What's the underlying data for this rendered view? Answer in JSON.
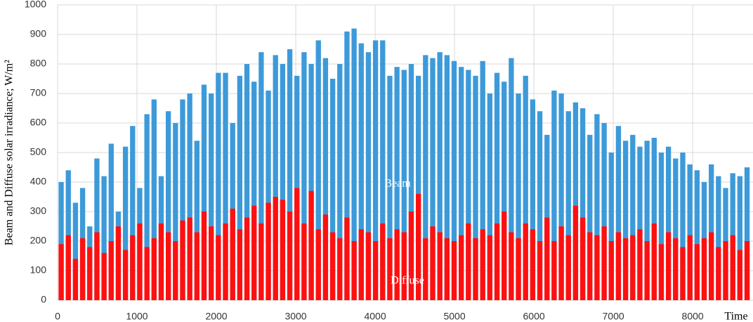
{
  "chart_data": {
    "type": "bar",
    "y_label": "Beam and Diffuse solar irradiance; W/m²",
    "x_label": "Time",
    "x": [
      45,
      135,
      225,
      315,
      405,
      495,
      585,
      675,
      765,
      855,
      945,
      1035,
      1125,
      1215,
      1305,
      1395,
      1485,
      1575,
      1665,
      1755,
      1845,
      1935,
      2025,
      2115,
      2205,
      2295,
      2385,
      2475,
      2565,
      2655,
      2745,
      2835,
      2925,
      3015,
      3105,
      3195,
      3285,
      3375,
      3465,
      3555,
      3645,
      3735,
      3825,
      3915,
      4005,
      4095,
      4185,
      4275,
      4365,
      4455,
      4545,
      4635,
      4725,
      4815,
      4905,
      4995,
      5085,
      5175,
      5265,
      5355,
      5445,
      5535,
      5625,
      5715,
      5805,
      5895,
      5985,
      6075,
      6165,
      6255,
      6345,
      6435,
      6525,
      6615,
      6705,
      6795,
      6885,
      6975,
      7065,
      7155,
      7245,
      7335,
      7425,
      7515,
      7605,
      7695,
      7785,
      7875,
      7965,
      8055,
      8145,
      8235,
      8325,
      8415,
      8505,
      8595,
      8685
    ],
    "series": [
      {
        "name": "Beam",
        "color": "#3d9ad9",
        "values": [
          400,
          440,
          330,
          380,
          250,
          480,
          420,
          530,
          300,
          520,
          590,
          380,
          630,
          680,
          420,
          640,
          600,
          680,
          700,
          540,
          730,
          700,
          770,
          770,
          600,
          760,
          800,
          740,
          840,
          710,
          830,
          800,
          850,
          760,
          840,
          800,
          880,
          820,
          750,
          800,
          910,
          920,
          870,
          840,
          880,
          880,
          760,
          790,
          780,
          800,
          760,
          830,
          820,
          840,
          830,
          810,
          790,
          780,
          760,
          810,
          700,
          770,
          740,
          820,
          700,
          760,
          680,
          640,
          560,
          710,
          700,
          640,
          670,
          650,
          560,
          630,
          600,
          500,
          590,
          540,
          560,
          520,
          540,
          550,
          500,
          520,
          480,
          500,
          460,
          440,
          400,
          460,
          420,
          380,
          430,
          420,
          450
        ]
      },
      {
        "name": "Diffuse",
        "color": "#ff1010",
        "values": [
          190,
          220,
          140,
          210,
          180,
          230,
          160,
          200,
          250,
          170,
          220,
          260,
          180,
          210,
          260,
          230,
          200,
          270,
          280,
          230,
          300,
          250,
          220,
          260,
          310,
          240,
          280,
          320,
          260,
          330,
          350,
          340,
          300,
          380,
          260,
          370,
          240,
          290,
          230,
          210,
          280,
          200,
          240,
          230,
          200,
          260,
          210,
          240,
          230,
          300,
          360,
          210,
          250,
          230,
          210,
          200,
          220,
          260,
          210,
          240,
          220,
          260,
          300,
          230,
          210,
          260,
          240,
          200,
          280,
          200,
          250,
          220,
          320,
          280,
          230,
          220,
          250,
          200,
          230,
          210,
          220,
          240,
          200,
          260,
          190,
          230,
          210,
          180,
          220,
          190,
          210,
          230,
          180,
          200,
          220,
          170,
          200
        ]
      }
    ],
    "xlim": [
      0,
      8760
    ],
    "xticks": [
      0,
      1000,
      2000,
      3000,
      4000,
      5000,
      6000,
      7000,
      8000
    ],
    "ylim": [
      0,
      1000
    ],
    "yticks": [
      0,
      100,
      200,
      300,
      400,
      500,
      600,
      700,
      800,
      900,
      1000
    ],
    "grid": true
  }
}
